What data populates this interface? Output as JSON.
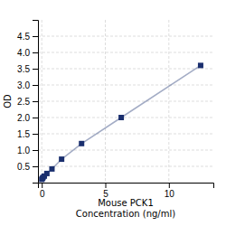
{
  "chart_data": {
    "type": "line",
    "x_label": "Mouse PCK1\nConcentration (ng/ml)",
    "y_label": "OD",
    "x": [
      0.0,
      0.05,
      0.1,
      0.2,
      0.4,
      0.8,
      1.56,
      3.13,
      6.25,
      12.5
    ],
    "values": [
      0.1,
      0.13,
      0.16,
      0.2,
      0.28,
      0.42,
      0.72,
      1.2,
      2.0,
      3.6
    ],
    "color": "#1a2f6e",
    "marker": "square",
    "xlim": [
      -0.3,
      13.5
    ],
    "ylim": [
      0,
      5.0
    ],
    "xticks": [
      0,
      5,
      10
    ],
    "yticks": [
      0.5,
      {
        "value": 1.0,
        "label": "1.0"
      },
      1.5,
      {
        "value": 2.0,
        "label": "2.0"
      },
      2.5,
      {
        "value": 3.0,
        "label": "3.0"
      },
      3.5,
      {
        "value": 4.0,
        "label": "4.0"
      },
      4.5
    ],
    "grid": true
  }
}
